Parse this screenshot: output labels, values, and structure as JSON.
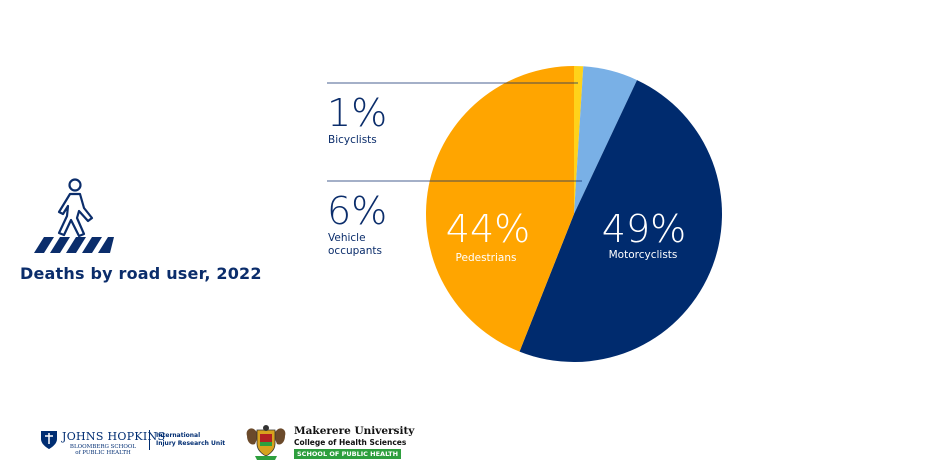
{
  "title": "Deaths by road user, 2022",
  "colors": {
    "motorcyclists": "#002b6e",
    "pedestrians": "#ffa500",
    "vehicle_occupants": "#79b0e6",
    "bicyclists": "#ffd21a",
    "text": "#0b2d6b"
  },
  "chart_data": {
    "type": "pie",
    "start_angle_deg": 0,
    "direction": "clockwise",
    "slices": [
      {
        "label": "Bicyclists",
        "pct_label": "1%",
        "value": 1,
        "color": "#ffd21a"
      },
      {
        "label": "Vehicle occupants",
        "label_lines": [
          "Vehicle",
          "occupants"
        ],
        "pct_label": "6%",
        "value": 6,
        "color": "#79b0e6"
      },
      {
        "label": "Motorcyclists",
        "pct_label": "49%",
        "value": 49,
        "color": "#002b6e"
      },
      {
        "label": "Pedestrians",
        "pct_label": "44%",
        "value": 44,
        "color": "#ffa500"
      }
    ]
  },
  "footer": {
    "jhu_name": "JOHNS HOPKINS",
    "jhu_school_lines": [
      "BLOOMBERG SCHOOL",
      "of PUBLIC HEALTH"
    ],
    "iiru_lines": [
      "International",
      "Injury Research Unit"
    ],
    "makerere_name": "Makerere University",
    "makerere_college": "College of Health Sciences",
    "makerere_school": "SCHOOL OF PUBLIC HEALTH"
  }
}
